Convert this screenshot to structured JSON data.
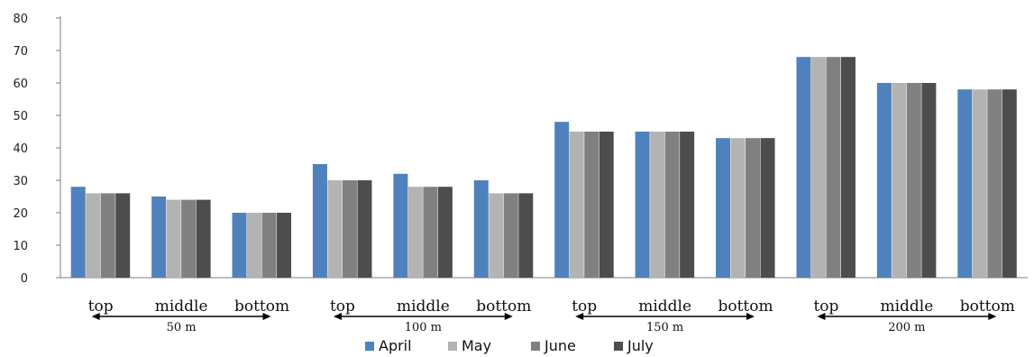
{
  "chart_data": {
    "type": "bar",
    "title": "",
    "xlabel": "",
    "ylabel": "",
    "ylim": [
      0,
      80
    ],
    "yticks": [
      0,
      10,
      20,
      30,
      40,
      50,
      60,
      70,
      80
    ],
    "grid": false,
    "legend_position": "bottom",
    "categories": [
      "top",
      "middle",
      "bottom",
      "top",
      "middle",
      "bottom",
      "top",
      "middle",
      "bottom",
      "top",
      "middle",
      "bottom"
    ],
    "groups": [
      {
        "label": "50 m",
        "categories": [
          "top",
          "middle",
          "bottom"
        ]
      },
      {
        "label": "100 m",
        "categories": [
          "top",
          "middle",
          "bottom"
        ]
      },
      {
        "label": "150 m",
        "categories": [
          "top",
          "middle",
          "bottom"
        ]
      },
      {
        "label": "200 m",
        "categories": [
          "top",
          "middle",
          "bottom"
        ]
      }
    ],
    "series": [
      {
        "name": "April",
        "color": "#4f81bd",
        "values": [
          28,
          25,
          20,
          35,
          32,
          30,
          48,
          45,
          43,
          68,
          60,
          58
        ]
      },
      {
        "name": "May",
        "color": "#b3b3b3",
        "values": [
          26,
          24,
          20,
          30,
          28,
          26,
          45,
          45,
          43,
          68,
          60,
          58
        ]
      },
      {
        "name": "June",
        "color": "#808080",
        "values": [
          26,
          24,
          20,
          30,
          28,
          26,
          45,
          45,
          43,
          68,
          60,
          58
        ]
      },
      {
        "name": "July",
        "color": "#4d4d4d",
        "values": [
          26,
          24,
          20,
          30,
          28,
          26,
          45,
          45,
          43,
          68,
          60,
          58
        ]
      }
    ]
  }
}
